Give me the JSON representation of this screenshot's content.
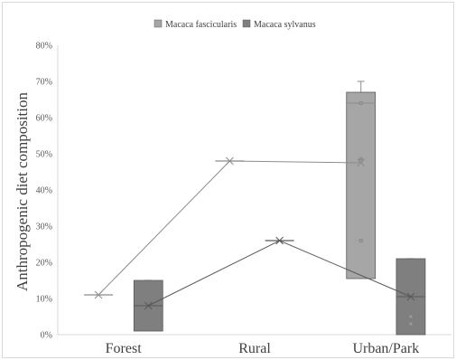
{
  "chart_data": {
    "type": "box",
    "ylabel": "Anthropogenic diet composition",
    "categories": [
      "Forest",
      "Rural",
      "Urban/Park"
    ],
    "ylim": [
      0,
      80
    ],
    "yticks": [
      "0%",
      "10%",
      "20%",
      "30%",
      "40%",
      "50%",
      "60%",
      "70%",
      "80%"
    ],
    "grid": false,
    "legend": {
      "position": "top-center"
    },
    "series": [
      {
        "name": "Macaca fascicularis",
        "color": "#a6a6a6",
        "boxes": [
          {
            "category": "Forest",
            "min": 11,
            "q1": 11,
            "median": 11,
            "q3": 11,
            "max": 11,
            "mean": 11,
            "points": []
          },
          {
            "category": "Rural",
            "min": 48,
            "q1": 48,
            "median": 48,
            "q3": 48,
            "max": 48,
            "mean": 48,
            "points": []
          },
          {
            "category": "Urban/Park",
            "min": 15.5,
            "q1": 15.5,
            "median": 64,
            "q3": 67,
            "max": 70,
            "mean": 47.5,
            "points": [
              64,
              48.5,
              48,
              26
            ]
          }
        ]
      },
      {
        "name": "Macaca sylvanus",
        "color": "#7f7f7f",
        "boxes": [
          {
            "category": "Forest",
            "min": 1,
            "q1": 1,
            "median": 8,
            "q3": 15,
            "max": 15,
            "mean": 8,
            "points": []
          },
          {
            "category": "Rural",
            "min": 26,
            "q1": 26,
            "median": 26,
            "q3": 26,
            "max": 26,
            "mean": 26,
            "points": []
          },
          {
            "category": "Urban/Park",
            "min": 0,
            "q1": 0,
            "median": 10.5,
            "q3": 21,
            "max": 21,
            "mean": 10.5,
            "points": [
              5,
              3
            ]
          }
        ]
      }
    ]
  }
}
